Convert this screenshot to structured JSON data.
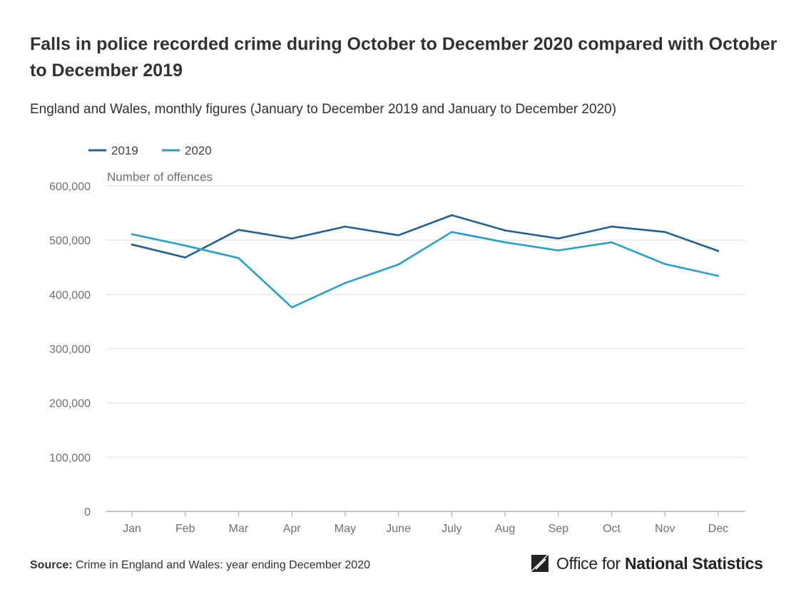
{
  "chart_data": {
    "type": "line",
    "title": "Falls in police recorded crime during October to December 2020 compared with October to December 2019",
    "subtitle": "England and Wales, monthly figures (January to December 2019 and January to December 2020)",
    "ylabel": "Number of offences",
    "xlabel": "",
    "categories": [
      "Jan",
      "Feb",
      "Mar",
      "Apr",
      "May",
      "June",
      "July",
      "Aug",
      "Sep",
      "Oct",
      "Nov",
      "Dec"
    ],
    "ylim": [
      0,
      600000
    ],
    "yticks": [
      0,
      100000,
      200000,
      300000,
      400000,
      500000,
      600000
    ],
    "ytick_labels": [
      "0",
      "100,000",
      "200,000",
      "300,000",
      "400,000",
      "500,000",
      "600,000"
    ],
    "grid": true,
    "legend": "top-left",
    "series": [
      {
        "name": "2019",
        "color": "#206095",
        "values": [
          492000,
          468000,
          519000,
          503000,
          525000,
          509000,
          546000,
          518000,
          503000,
          525000,
          515000,
          480000
        ]
      },
      {
        "name": "2020",
        "color": "#27a0cc",
        "values": [
          511000,
          490000,
          467000,
          376000,
          421000,
          455000,
          515000,
          496000,
          481000,
          496000,
          456000,
          434000
        ]
      }
    ]
  },
  "footer": {
    "source_label": "Source:",
    "source_text": "Crime in England and Wales: year ending December 2020"
  },
  "logo": {
    "text_light": "Office for ",
    "text_bold": "National Statistics"
  }
}
